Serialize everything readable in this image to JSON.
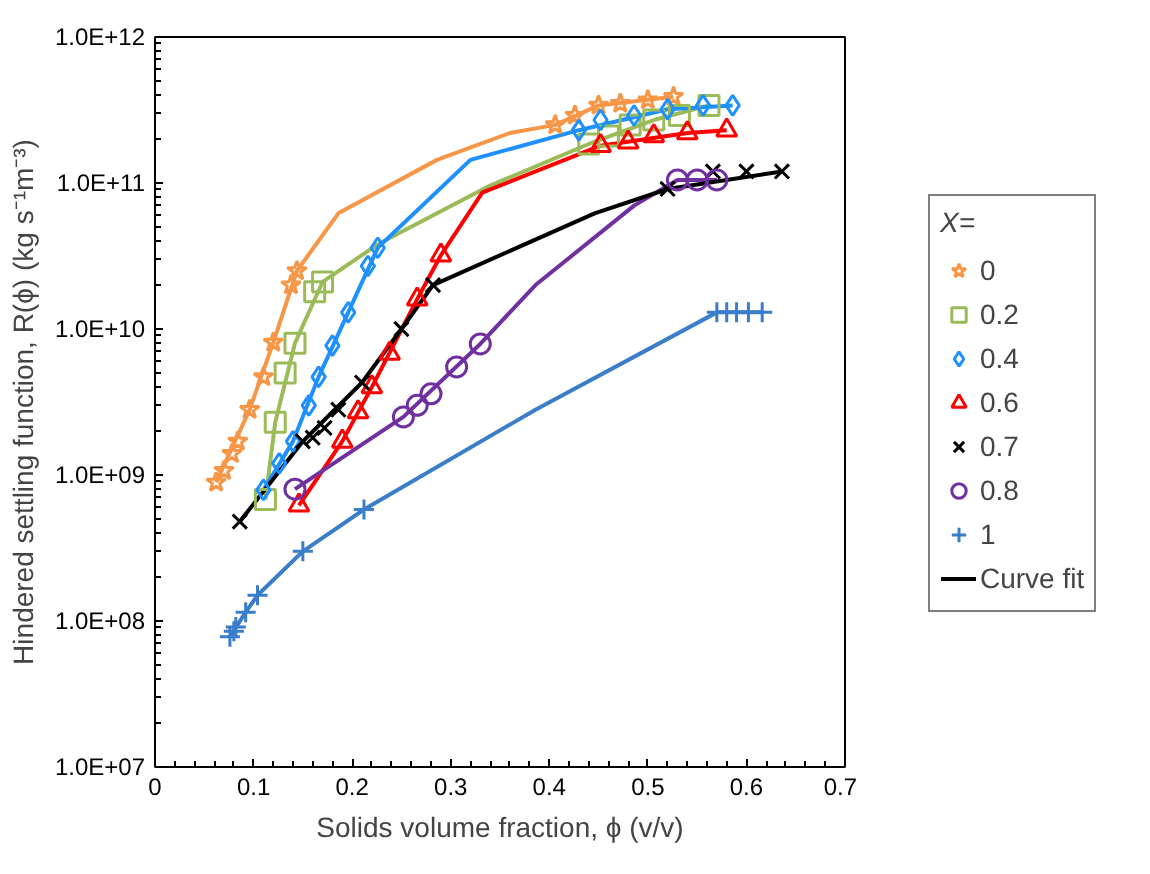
{
  "chart_data": {
    "type": "scatter",
    "xlabel": "Solids volume fraction, ϕ (v/v)",
    "ylabel": "Hindered settling function, R(ϕ) (kg s⁻¹m⁻³)",
    "legend_title": "X=",
    "legend": "right",
    "grid": false,
    "log": "y",
    "xlim": [
      0,
      0.7
    ],
    "xticks": [
      0,
      0.1,
      0.2,
      0.3,
      0.4,
      0.5,
      0.6,
      0.7
    ],
    "ylim": [
      10000000.0,
      1000000000000.0
    ],
    "yticks": [
      {
        "value": 10000000.0,
        "label": "1.0E+07"
      },
      {
        "value": 100000000.0,
        "label": "1.0E+08"
      },
      {
        "value": 1000000000.0,
        "label": "1.0E+09"
      },
      {
        "value": 10000000000.0,
        "label": "1.0E+10"
      },
      {
        "value": 100000000000.0,
        "label": "1.0E+11"
      },
      {
        "value": 1000000000000.0,
        "label": "1.0E+12"
      }
    ],
    "series": [
      {
        "name": "0",
        "marker": "star",
        "color": "#f79646",
        "x": [
          0.062,
          0.07,
          0.078,
          0.084,
          0.096,
          0.11,
          0.12,
          0.138,
          0.144,
          0.406,
          0.426,
          0.45,
          0.472,
          0.5,
          0.526
        ],
        "values": [
          890000000.0,
          1070000000.0,
          1400000000.0,
          1700000000.0,
          2800000000.0,
          4700000000.0,
          8100000000.0,
          20000000000.0,
          25000000000.0,
          250000000000.0,
          290000000000.0,
          340000000000.0,
          350000000000.0,
          370000000000.0,
          390000000000.0
        ]
      },
      {
        "name": "0.2",
        "marker": "square",
        "color": "#9bbb59",
        "x": [
          0.112,
          0.122,
          0.132,
          0.142,
          0.162,
          0.17,
          0.44,
          0.46,
          0.482,
          0.506,
          0.532,
          0.562
        ],
        "values": [
          680000000.0,
          2300000000.0,
          5000000000.0,
          8000000000.0,
          18000000000.0,
          21000000000.0,
          185000000000.0,
          210000000000.0,
          250000000000.0,
          270000000000.0,
          290000000000.0,
          340000000000.0
        ]
      },
      {
        "name": "0.4",
        "marker": "diamond",
        "color": "#1e90ff",
        "x": [
          0.11,
          0.126,
          0.14,
          0.156,
          0.166,
          0.18,
          0.196,
          0.216,
          0.226,
          0.43,
          0.452,
          0.486,
          0.52,
          0.556,
          0.586
        ],
        "values": [
          790000000.0,
          1200000000.0,
          1700000000.0,
          3000000000.0,
          4700000000.0,
          7700000000.0,
          13000000000.0,
          27000000000.0,
          36000000000.0,
          230000000000.0,
          270000000000.0,
          290000000000.0,
          320000000000.0,
          340000000000.0,
          340000000000.0
        ]
      },
      {
        "name": "0.6",
        "marker": "triangle",
        "color": "#ff0000",
        "x": [
          0.146,
          0.19,
          0.206,
          0.22,
          0.238,
          0.266,
          0.29,
          0.452,
          0.48,
          0.506,
          0.54,
          0.58
        ],
        "values": [
          620000000.0,
          1700000000.0,
          2700000000.0,
          4000000000.0,
          6800000000.0,
          16000000000.0,
          32000000000.0,
          180000000000.0,
          190000000000.0,
          210000000000.0,
          220000000000.0,
          230000000000.0
        ]
      },
      {
        "name": "0.7",
        "marker": "x",
        "color": "#000000",
        "x": [
          0.086,
          0.15,
          0.16,
          0.172,
          0.186,
          0.21,
          0.25,
          0.282,
          0.52,
          0.566,
          0.6,
          0.636
        ],
        "values": [
          480000000.0,
          1700000000.0,
          1800000000.0,
          2100000000.0,
          2800000000.0,
          4300000000.0,
          10000000000.0,
          20000000000.0,
          91000000000.0,
          120000000000.0,
          120000000000.0,
          120000000000.0
        ]
      },
      {
        "name": "0.8",
        "marker": "circle",
        "color": "#7030a0",
        "x": [
          0.142,
          0.252,
          0.266,
          0.28,
          0.306,
          0.33,
          0.53,
          0.55,
          0.57
        ],
        "values": [
          800000000.0,
          2500000000.0,
          3000000000.0,
          3600000000.0,
          5500000000.0,
          7900000000.0,
          105000000000.0,
          105000000000.0,
          105000000000.0
        ]
      },
      {
        "name": "1",
        "marker": "cross",
        "color": "#3a7dc9",
        "x": [
          0.076,
          0.08,
          0.082,
          0.092,
          0.104,
          0.15,
          0.212,
          0.57,
          0.58,
          0.59,
          0.602,
          0.616
        ],
        "values": [
          78000000.0,
          85000000.0,
          91000000.0,
          115000000.0,
          150000000.0,
          300000000.0,
          580000000.0,
          13000000000.0,
          13000000000.0,
          13000000000.0,
          13000000000.0,
          13000000000.0
        ]
      },
      {
        "type": "line",
        "color": "#f79646",
        "x": [
          0.062,
          0.096,
          0.12,
          0.144,
          0.186,
          0.286,
          0.36,
          0.406,
          0.45,
          0.526
        ],
        "values": [
          890000000.0,
          2800000000.0,
          8100000000.0,
          25000000000.0,
          62000000000.0,
          144000000000.0,
          220000000000.0,
          250000000000.0,
          340000000000.0,
          390000000000.0
        ]
      },
      {
        "type": "line",
        "color": "#9bbb59",
        "x": [
          0.112,
          0.122,
          0.142,
          0.17,
          0.226,
          0.34,
          0.44,
          0.506,
          0.562
        ],
        "values": [
          680000000.0,
          2300000000.0,
          8000000000.0,
          21000000000.0,
          38000000000.0,
          96000000000.0,
          185000000000.0,
          270000000000.0,
          340000000000.0
        ]
      },
      {
        "type": "line",
        "color": "#1e90ff",
        "x": [
          0.11,
          0.14,
          0.166,
          0.196,
          0.226,
          0.32,
          0.43,
          0.52,
          0.586
        ],
        "values": [
          790000000.0,
          1700000000.0,
          4700000000.0,
          13000000000.0,
          36000000000.0,
          144000000000.0,
          230000000000.0,
          320000000000.0,
          340000000000.0
        ]
      },
      {
        "type": "line",
        "color": "#ff0000",
        "x": [
          0.146,
          0.19,
          0.22,
          0.266,
          0.29,
          0.332,
          0.452,
          0.54,
          0.58
        ],
        "values": [
          620000000.0,
          1700000000.0,
          4000000000.0,
          16000000000.0,
          32000000000.0,
          86000000000.0,
          180000000000.0,
          220000000000.0,
          230000000000.0
        ]
      },
      {
        "type": "line",
        "color": "#7030a0",
        "x": [
          0.142,
          0.252,
          0.33,
          0.386,
          0.486,
          0.53,
          0.57
        ],
        "values": [
          800000000.0,
          2500000000.0,
          7900000000.0,
          20000000000.0,
          70000000000.0,
          105000000000.0,
          105000000000.0
        ]
      },
      {
        "type": "line",
        "color": "#3a7dc9",
        "x": [
          0.076,
          0.092,
          0.104,
          0.15,
          0.212,
          0.386,
          0.57,
          0.616
        ],
        "values": [
          78000000.0,
          115000000.0,
          150000000.0,
          300000000.0,
          580000000.0,
          2800000000.0,
          13000000000.0,
          13000000000.0
        ]
      },
      {
        "name": "Curve fit",
        "type": "line",
        "color": "#000000",
        "x": [
          0.086,
          0.15,
          0.21,
          0.25,
          0.282,
          0.446,
          0.52,
          0.636
        ],
        "values": [
          480000000.0,
          1700000000.0,
          4300000000.0,
          10000000000.0,
          20000000000.0,
          62000000000.0,
          91000000000.0,
          120000000000.0
        ]
      }
    ]
  }
}
